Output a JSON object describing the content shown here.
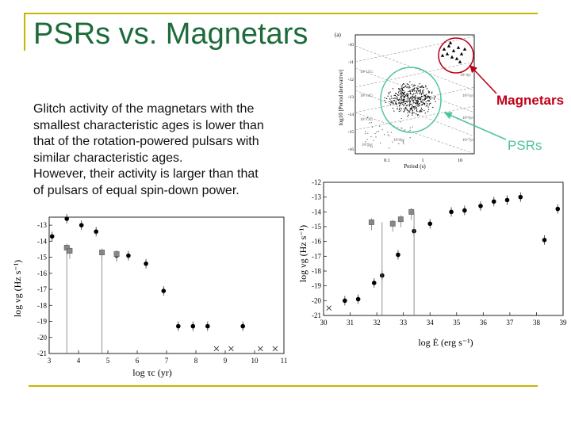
{
  "slide": {
    "title": "PSRs vs. Magnetars",
    "body_lines": [
      "Glitch activity of the magnetars with the",
      "smallest characteristic ages is lower than",
      "that of the rotation-powered pulsars with",
      "similar characteristic ages.",
      "However, their activity is larger than that",
      "of pulsars of equal spin-down power."
    ],
    "labels": {
      "magnetars": "Magnetars",
      "psrs": "PSRs"
    },
    "colors": {
      "title": "#1d6b3a",
      "frame": "#c8b400",
      "magnetars": "#c0001a",
      "psrs": "#4cc49a"
    }
  },
  "chart_data": [
    {
      "type": "scatter",
      "panel": "(a)",
      "xlabel": "Period (s)",
      "ylabel": "log10 [Period derivative]",
      "xticks": [
        "0.1",
        "1",
        "10"
      ],
      "yticks": [
        "-10",
        "-11",
        "-12",
        "-13",
        "-14",
        "-15",
        "-16"
      ],
      "line_labels": [
        "10^15G",
        "10^14G",
        "10^13G",
        "10^4yr",
        "10^5yr",
        "10^6yr",
        "10^7yr",
        "10^8yr",
        "10^9yr"
      ],
      "groups": [
        "Magnetars",
        "PSRs"
      ]
    },
    {
      "type": "scatter",
      "xlabel": "log τc (yr)",
      "ylabel": "log νg (Hz s⁻¹)",
      "xlim": [
        3,
        11
      ],
      "ylim": [
        -21,
        -12.5
      ],
      "xticks": [
        3,
        4,
        5,
        6,
        7,
        8,
        9,
        10,
        11
      ],
      "yticks": [
        -13,
        -14,
        -15,
        -16,
        -17,
        -18,
        -19,
        -20,
        -21
      ],
      "series": [
        {
          "marker": "circle",
          "points": [
            [
              3.1,
              -13.7
            ],
            [
              3.6,
              -12.6
            ],
            [
              4.1,
              -13.0
            ],
            [
              4.6,
              -13.4
            ],
            [
              5.3,
              -14.9
            ],
            [
              5.7,
              -14.9
            ],
            [
              6.3,
              -15.4
            ],
            [
              6.9,
              -17.1
            ],
            [
              7.4,
              -19.3
            ],
            [
              7.9,
              -19.3
            ],
            [
              8.4,
              -19.3
            ],
            [
              9.6,
              -19.3
            ]
          ]
        },
        {
          "marker": "square",
          "points": [
            [
              3.6,
              -14.4
            ],
            [
              3.7,
              -14.6
            ],
            [
              4.8,
              -14.7
            ],
            [
              5.3,
              -14.8
            ]
          ]
        },
        {
          "marker": "cross",
          "points": [
            [
              8.7,
              -20.7
            ],
            [
              9.2,
              -20.7
            ],
            [
              10.2,
              -20.7
            ],
            [
              10.7,
              -20.7
            ]
          ]
        }
      ]
    },
    {
      "type": "scatter",
      "xlabel": "log Ė (erg s⁻¹)",
      "ylabel": "log νg (Hz s⁻¹)",
      "xlim": [
        30,
        39
      ],
      "ylim": [
        -21,
        -12
      ],
      "xticks": [
        30,
        31,
        32,
        33,
        34,
        35,
        36,
        37,
        38,
        39
      ],
      "yticks": [
        -12,
        -13,
        -14,
        -15,
        -16,
        -17,
        -18,
        -19,
        -20,
        -21
      ],
      "series": [
        {
          "marker": "circle",
          "points": [
            [
              30.8,
              -20.0
            ],
            [
              31.3,
              -19.9
            ],
            [
              31.9,
              -18.8
            ],
            [
              32.2,
              -18.3
            ],
            [
              32.8,
              -16.9
            ],
            [
              33.4,
              -15.3
            ],
            [
              34.0,
              -14.8
            ],
            [
              34.8,
              -14.0
            ],
            [
              35.3,
              -13.9
            ],
            [
              35.9,
              -13.6
            ],
            [
              36.4,
              -13.3
            ],
            [
              36.9,
              -13.2
            ],
            [
              37.4,
              -13.0
            ],
            [
              38.3,
              -15.9
            ],
            [
              38.8,
              -13.8
            ]
          ]
        },
        {
          "marker": "square",
          "points": [
            [
              31.8,
              -14.7
            ],
            [
              32.6,
              -14.8
            ],
            [
              32.9,
              -14.5
            ],
            [
              33.3,
              -14.0
            ]
          ]
        },
        {
          "marker": "cross",
          "points": [
            [
              30.2,
              -20.5
            ]
          ]
        }
      ]
    }
  ]
}
